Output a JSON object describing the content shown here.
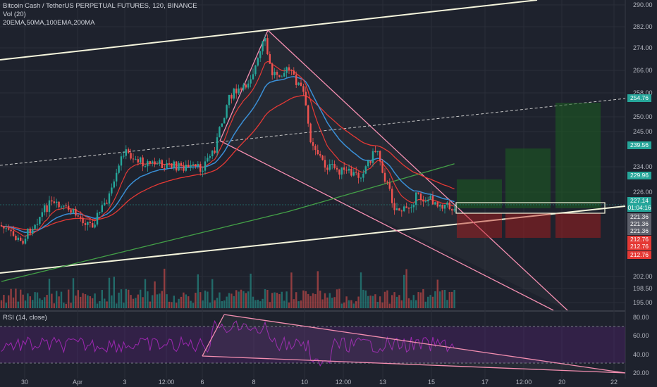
{
  "header": {
    "symbol_line": "Bitcoin Cash / TetherUS PERPETUAL FUTURES, 120, BINANCE",
    "volume_label": "Vol (20)",
    "ma_label": "20EMA,50MA,100EMA,200MA"
  },
  "rsi": {
    "label": "RSI (14, close)",
    "levels": [
      "80.00",
      "60.00",
      "40.00",
      "20.00"
    ]
  },
  "price_axis": {
    "labels": [
      "290.00",
      "282.00",
      "274.00",
      "266.00",
      "258.00",
      "250.00",
      "245.00",
      "234.00",
      "226.00",
      "202.00",
      "198.50",
      "195.00"
    ]
  },
  "price_tags": [
    {
      "text": "254.76",
      "color": "#26a69a"
    },
    {
      "text": "239.56",
      "color": "#26a69a"
    },
    {
      "text": "229.96",
      "color": "#26a69a"
    },
    {
      "text": "227.14",
      "color": "#26a69a"
    },
    {
      "text": "01:04:16",
      "color": "#26a69a"
    },
    {
      "text": "221.36",
      "color": "#5d606b"
    },
    {
      "text": "221.36",
      "color": "#5d606b"
    },
    {
      "text": "221.36",
      "color": "#5d606b"
    },
    {
      "text": "212.76",
      "color": "#e53935"
    },
    {
      "text": "212.76",
      "color": "#e53935"
    },
    {
      "text": "212.76",
      "color": "#e53935"
    }
  ],
  "time_axis": {
    "labels": [
      "30",
      "Apr",
      "3",
      "12:00",
      "6",
      "8",
      "10",
      "12:00",
      "13",
      "15",
      "17",
      "12:00",
      "20",
      "22"
    ]
  },
  "colors": {
    "background": "#1e222d",
    "up": "#26a69a",
    "down": "#ef5350",
    "ema20": "#e53935",
    "ma50": "#3a8fd6",
    "ema100": "#e53935",
    "ma200": "#43a047",
    "rsi": "#9c27b0"
  }
}
